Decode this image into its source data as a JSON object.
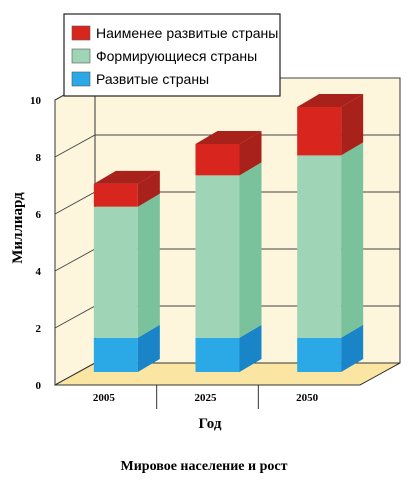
{
  "chart_data": {
    "type": "bar",
    "stacked": true,
    "three_d": true,
    "title": "Мировое население и рост",
    "xlabel": "Год",
    "ylabel": "Миллиард",
    "ylim": [
      0,
      10
    ],
    "yticks": [
      0,
      2,
      4,
      6,
      8,
      10
    ],
    "categories": [
      "2005",
      "2025",
      "2050"
    ],
    "series": [
      {
        "name": "Развитые страны",
        "values": [
          1.2,
          1.2,
          1.2
        ],
        "color": "#2aa9e6",
        "side_color": "#1a84c8"
      },
      {
        "name": "Формирующиеся страны",
        "values": [
          4.6,
          5.7,
          6.4
        ],
        "color": "#9fd4b6",
        "side_color": "#79c29b"
      },
      {
        "name": "Наименее развитые страны",
        "values": [
          0.8,
          1.1,
          1.7
        ],
        "color": "#d8261f",
        "side_color": "#a8211a"
      }
    ],
    "legend_position": "top",
    "legend_order": [
      2,
      1,
      0
    ],
    "floor_color": "#fbe5a3",
    "wall_color": "#fdf6dc",
    "grid": true
  }
}
